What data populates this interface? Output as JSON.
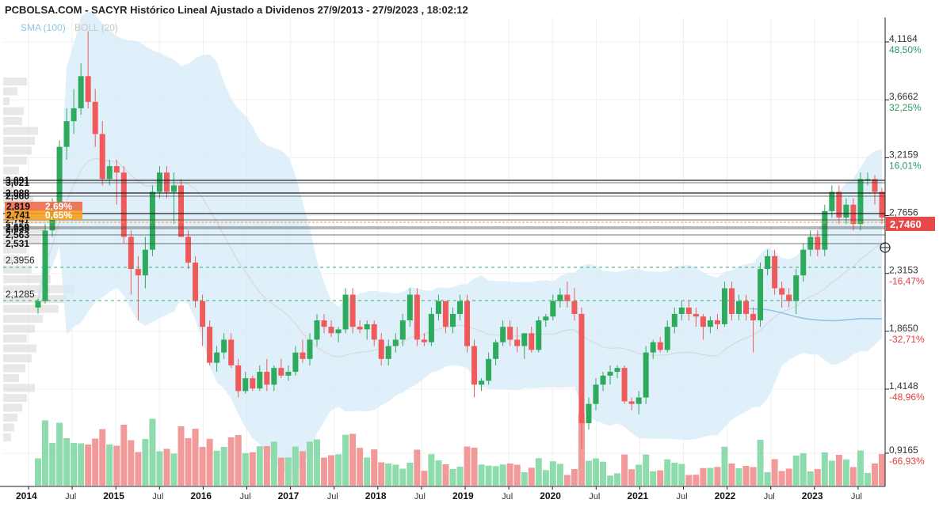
{
  "header": {
    "title": "PCBOLSA.COM - SACYR Histórico Lineal Ajustado a Dividenos 27/9/2013 - 27/9/2023 , 18:02:12",
    "legend_sma": "SMA (100)",
    "legend_boll": "BOLL (20)"
  },
  "colors": {
    "up": "#2eaa5c",
    "down": "#f05a5a",
    "vol_up": "#8edcae",
    "vol_down": "#f29a9a",
    "band": "#d6ebfa",
    "sma": "#8ec5ea",
    "pct_up": "#2e9a62",
    "pct_down": "#e04040",
    "last_badge": "#e84848"
  },
  "chart_data": {
    "type": "candlestick",
    "title": "PCBOLSA.COM - SACYR Histórico Lineal Ajustado a Dividenos 27/9/2013 - 27/9/2023 , 18:02:12",
    "y_ticks": [
      {
        "value": "4,1164",
        "pct": "48,50%",
        "dir": "up"
      },
      {
        "value": "3,6662",
        "pct": "32,25%",
        "dir": "up"
      },
      {
        "value": "3,2159",
        "pct": "16,01%",
        "dir": "up"
      },
      {
        "value": "2,7656",
        "pct": "",
        "dir": "up"
      },
      {
        "value": "2,3153",
        "pct": "-16,47%",
        "dir": "down"
      },
      {
        "value": "1,8650",
        "pct": "-32,71%",
        "dir": "down"
      },
      {
        "value": "1,4148",
        "pct": "-48,96%",
        "dir": "down"
      },
      {
        "value": "0,9165",
        "pct": "-66,93%",
        "dir": "down"
      }
    ],
    "ylim": [
      0.85,
      4.3
    ],
    "x_labels": [
      "2014",
      "Jul",
      "2015",
      "Jul",
      "2016",
      "Jul",
      "2017",
      "Jul",
      "2018",
      "Jul",
      "2019",
      "Jul",
      "2020",
      "Jul",
      "2021",
      "Jul",
      "2022",
      "Jul",
      "2023",
      "Jul"
    ],
    "last_price": "2,7460",
    "levels_solid": [
      "3,091",
      "3,021",
      "2,988",
      "2,960",
      "2,819",
      "2,741",
      "2,659",
      "2,635",
      "2,563",
      "2,531"
    ],
    "levels_dashed": [
      "2,3956",
      "2,1285"
    ],
    "level_badges": [
      {
        "price": "2,819",
        "pct": "2,69%",
        "color": "#f06a4a"
      },
      {
        "price": "2,741",
        "pct": "0,65%",
        "color": "#f5a020"
      }
    ],
    "candles_start": "2013-10",
    "candles": [
      [
        2.05,
        2.12,
        2.0,
        2.1
      ],
      [
        2.1,
        2.7,
        2.08,
        2.65
      ],
      [
        2.65,
        2.9,
        2.6,
        2.85
      ],
      [
        2.85,
        3.35,
        2.8,
        3.3
      ],
      [
        3.3,
        3.6,
        3.2,
        3.5
      ],
      [
        3.5,
        3.75,
        3.4,
        3.6
      ],
      [
        3.6,
        3.95,
        3.55,
        3.85
      ],
      [
        3.85,
        4.2,
        3.6,
        3.65
      ],
      [
        3.65,
        3.75,
        3.3,
        3.4
      ],
      [
        3.4,
        3.5,
        3.0,
        3.05
      ],
      [
        3.05,
        3.2,
        3.0,
        3.15
      ],
      [
        3.15,
        3.2,
        2.85,
        3.1
      ],
      [
        3.1,
        3.15,
        2.55,
        2.6
      ],
      [
        2.6,
        2.65,
        2.15,
        2.35
      ],
      [
        2.35,
        2.45,
        1.95,
        2.3
      ],
      [
        2.3,
        2.6,
        2.2,
        2.5
      ],
      [
        2.5,
        3.0,
        2.45,
        2.95
      ],
      [
        2.95,
        3.15,
        2.9,
        3.1
      ],
      [
        3.1,
        3.15,
        2.9,
        2.95
      ],
      [
        2.95,
        3.1,
        2.7,
        3.0
      ],
      [
        3.0,
        3.05,
        2.6,
        2.6
      ],
      [
        2.6,
        2.65,
        2.35,
        2.4
      ],
      [
        2.4,
        2.45,
        2.05,
        2.1
      ],
      [
        2.1,
        2.15,
        1.75,
        1.9
      ],
      [
        1.9,
        1.95,
        1.6,
        1.62
      ],
      [
        1.62,
        1.75,
        1.55,
        1.7
      ],
      [
        1.7,
        1.85,
        1.65,
        1.8
      ],
      [
        1.8,
        1.85,
        1.58,
        1.6
      ],
      [
        1.6,
        1.65,
        1.35,
        1.4
      ],
      [
        1.4,
        1.55,
        1.38,
        1.5
      ],
      [
        1.5,
        1.52,
        1.4,
        1.42
      ],
      [
        1.42,
        1.6,
        1.4,
        1.55
      ],
      [
        1.55,
        1.65,
        1.4,
        1.45
      ],
      [
        1.45,
        1.6,
        1.4,
        1.58
      ],
      [
        1.58,
        1.65,
        1.5,
        1.52
      ],
      [
        1.52,
        1.6,
        1.48,
        1.55
      ],
      [
        1.55,
        1.75,
        1.52,
        1.7
      ],
      [
        1.7,
        1.8,
        1.62,
        1.65
      ],
      [
        1.65,
        1.85,
        1.6,
        1.8
      ],
      [
        1.8,
        2.0,
        1.75,
        1.95
      ],
      [
        1.95,
        2.0,
        1.85,
        1.9
      ],
      [
        1.9,
        1.95,
        1.82,
        1.85
      ],
      [
        1.85,
        1.9,
        1.78,
        1.88
      ],
      [
        1.88,
        2.2,
        1.85,
        2.15
      ],
      [
        2.15,
        2.2,
        1.85,
        1.9
      ],
      [
        1.9,
        1.95,
        1.85,
        1.88
      ],
      [
        1.88,
        1.95,
        1.8,
        1.92
      ],
      [
        1.92,
        1.95,
        1.75,
        1.8
      ],
      [
        1.8,
        1.85,
        1.6,
        1.65
      ],
      [
        1.65,
        1.8,
        1.6,
        1.75
      ],
      [
        1.75,
        1.85,
        1.7,
        1.8
      ],
      [
        1.8,
        2.0,
        1.75,
        1.95
      ],
      [
        1.95,
        2.2,
        1.9,
        2.15
      ],
      [
        2.15,
        2.2,
        1.75,
        1.8
      ],
      [
        1.8,
        1.85,
        1.75,
        1.78
      ],
      [
        1.78,
        2.05,
        1.75,
        2.0
      ],
      [
        2.0,
        2.15,
        1.95,
        2.1
      ],
      [
        2.1,
        2.1,
        1.85,
        1.9
      ],
      [
        1.9,
        2.05,
        1.85,
        2.0
      ],
      [
        2.0,
        2.15,
        1.95,
        2.1
      ],
      [
        2.1,
        2.15,
        1.7,
        1.75
      ],
      [
        1.75,
        1.8,
        1.35,
        1.45
      ],
      [
        1.45,
        1.5,
        1.4,
        1.48
      ],
      [
        1.48,
        1.7,
        1.45,
        1.65
      ],
      [
        1.65,
        1.8,
        1.6,
        1.78
      ],
      [
        1.78,
        1.95,
        1.75,
        1.9
      ],
      [
        1.9,
        1.95,
        1.75,
        1.8
      ],
      [
        1.8,
        1.9,
        1.7,
        1.75
      ],
      [
        1.75,
        1.85,
        1.65,
        1.85
      ],
      [
        1.85,
        1.9,
        1.7,
        1.72
      ],
      [
        1.72,
        1.98,
        1.7,
        1.95
      ],
      [
        1.95,
        2.0,
        1.9,
        1.98
      ],
      [
        1.98,
        2.15,
        1.95,
        2.1
      ],
      [
        2.1,
        2.2,
        2.05,
        2.15
      ],
      [
        2.15,
        2.25,
        2.05,
        2.1
      ],
      [
        2.1,
        2.2,
        1.95,
        2.0
      ],
      [
        2.0,
        2.05,
        0.95,
        1.15
      ],
      [
        1.15,
        1.35,
        1.1,
        1.3
      ],
      [
        1.3,
        1.5,
        1.25,
        1.45
      ],
      [
        1.45,
        1.55,
        1.4,
        1.52
      ],
      [
        1.52,
        1.6,
        1.45,
        1.55
      ],
      [
        1.55,
        1.6,
        1.5,
        1.58
      ],
      [
        1.58,
        1.6,
        1.3,
        1.32
      ],
      [
        1.32,
        1.35,
        1.25,
        1.3
      ],
      [
        1.3,
        1.4,
        1.22,
        1.35
      ],
      [
        1.35,
        1.75,
        1.3,
        1.7
      ],
      [
        1.7,
        1.8,
        1.65,
        1.78
      ],
      [
        1.78,
        1.82,
        1.7,
        1.72
      ],
      [
        1.72,
        1.95,
        1.7,
        1.9
      ],
      [
        1.9,
        2.05,
        1.85,
        2.0
      ],
      [
        2.0,
        2.1,
        1.95,
        2.05
      ],
      [
        2.05,
        2.1,
        1.95,
        2.0
      ],
      [
        2.0,
        2.05,
        1.9,
        1.98
      ],
      [
        1.98,
        2.0,
        1.8,
        1.9
      ],
      [
        1.9,
        1.98,
        1.85,
        1.95
      ],
      [
        1.95,
        2.0,
        1.88,
        1.92
      ],
      [
        1.92,
        2.25,
        1.9,
        2.2
      ],
      [
        2.2,
        2.25,
        1.95,
        2.0
      ],
      [
        2.0,
        2.15,
        1.95,
        2.1
      ],
      [
        2.1,
        2.15,
        1.95,
        2.0
      ],
      [
        2.0,
        2.05,
        1.7,
        1.95
      ],
      [
        1.95,
        2.4,
        1.9,
        2.35
      ],
      [
        2.35,
        2.5,
        2.3,
        2.45
      ],
      [
        2.45,
        2.5,
        2.15,
        2.2
      ],
      [
        2.2,
        2.25,
        2.05,
        2.15
      ],
      [
        2.15,
        2.2,
        2.05,
        2.1
      ],
      [
        2.1,
        2.35,
        2.0,
        2.3
      ],
      [
        2.3,
        2.55,
        2.25,
        2.5
      ],
      [
        2.5,
        2.65,
        2.45,
        2.6
      ],
      [
        2.6,
        2.65,
        2.45,
        2.5
      ],
      [
        2.5,
        2.85,
        2.45,
        2.8
      ],
      [
        2.8,
        3.0,
        2.75,
        2.95
      ],
      [
        2.95,
        3.0,
        2.7,
        2.75
      ],
      [
        2.75,
        2.9,
        2.7,
        2.85
      ],
      [
        2.85,
        2.9,
        2.65,
        2.7
      ],
      [
        2.7,
        3.1,
        2.65,
        3.05
      ],
      [
        3.05,
        3.1,
        3.0,
        3.05
      ],
      [
        3.05,
        3.08,
        2.85,
        2.95
      ],
      [
        2.95,
        2.98,
        2.7,
        2.75
      ]
    ],
    "sma100": [
      [
        1.85,
        null
      ],
      [
        1.85,
        null
      ],
      [
        1.85,
        null
      ],
      [
        1.85,
        null
      ]
    ],
    "volume_note": "volume bars per month"
  }
}
